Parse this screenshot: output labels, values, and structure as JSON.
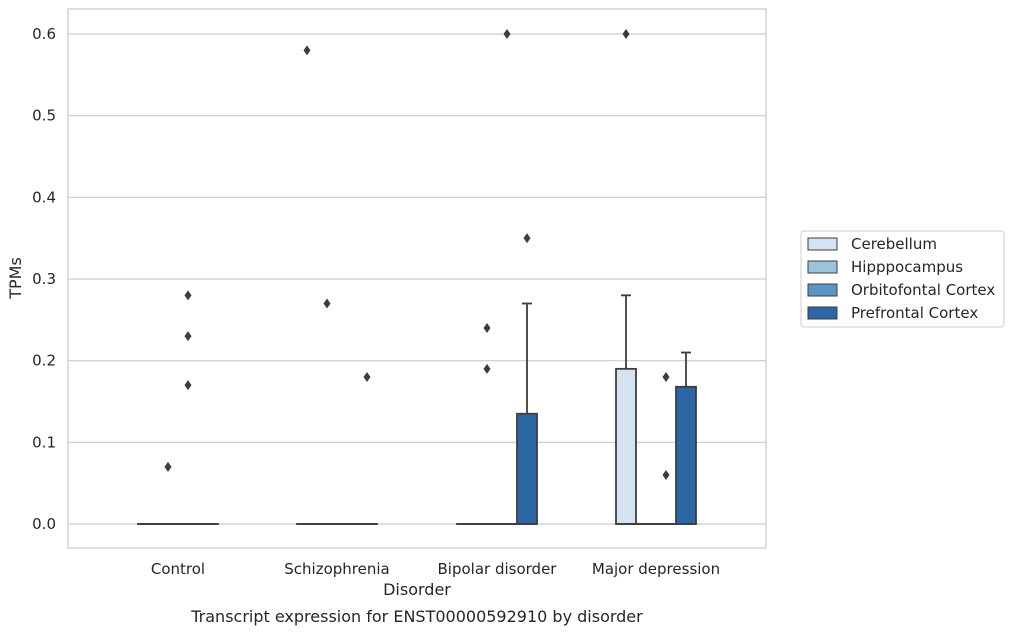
{
  "chart_data": {
    "type": "box",
    "caption": "Transcript expression for ENST00000592910 by disorder",
    "xlabel": "Disorder",
    "ylabel": "TPMs",
    "ylim": [
      -0.03,
      0.63
    ],
    "yticks": [
      0.0,
      0.1,
      0.2,
      0.3,
      0.4,
      0.5,
      0.6
    ],
    "ytick_labels": [
      "0.0",
      "0.1",
      "0.2",
      "0.3",
      "0.4",
      "0.5",
      "0.6"
    ],
    "grid": "horizontal",
    "legend_placement": "right",
    "categories": [
      "Control",
      "Schizophrenia",
      "Bipolar disorder",
      "Major depression"
    ],
    "series": [
      {
        "name": "Cerebellum",
        "color": "#d4e3f1",
        "boxes": [
          {
            "q1": 0,
            "median": 0,
            "q3": 0,
            "whisker_low": 0,
            "whisker_high": 0,
            "outliers": []
          },
          {
            "q1": 0,
            "median": 0,
            "q3": 0,
            "whisker_low": 0,
            "whisker_high": 0,
            "outliers": [
              0.58
            ]
          },
          {
            "q1": 0,
            "median": 0,
            "q3": 0,
            "whisker_low": 0,
            "whisker_high": 0,
            "outliers": []
          },
          {
            "q1": 0,
            "median": 0,
            "q3": 0.19,
            "whisker_low": 0,
            "whisker_high": 0.28,
            "outliers": [
              0.6
            ]
          }
        ]
      },
      {
        "name": "Hipppocampus",
        "color": "#9ac3dd",
        "boxes": [
          {
            "q1": 0,
            "median": 0,
            "q3": 0,
            "whisker_low": 0,
            "whisker_high": 0,
            "outliers": [
              0.07
            ]
          },
          {
            "q1": 0,
            "median": 0,
            "q3": 0,
            "whisker_low": 0,
            "whisker_high": 0,
            "outliers": [
              0.27
            ]
          },
          {
            "q1": 0,
            "median": 0,
            "q3": 0,
            "whisker_low": 0,
            "whisker_high": 0,
            "outliers": [
              0.24,
              0.19
            ]
          },
          {
            "q1": 0,
            "median": 0,
            "q3": 0,
            "whisker_low": 0,
            "whisker_high": 0,
            "outliers": []
          }
        ]
      },
      {
        "name": "Orbitofontal Cortex",
        "color": "#5a96c3",
        "boxes": [
          {
            "q1": 0,
            "median": 0,
            "q3": 0,
            "whisker_low": 0,
            "whisker_high": 0,
            "outliers": [
              0.28,
              0.23,
              0.17
            ]
          },
          {
            "q1": 0,
            "median": 0,
            "q3": 0,
            "whisker_low": 0,
            "whisker_high": 0,
            "outliers": []
          },
          {
            "q1": 0,
            "median": 0,
            "q3": 0,
            "whisker_low": 0,
            "whisker_high": 0,
            "outliers": [
              0.6
            ]
          },
          {
            "q1": 0,
            "median": 0,
            "q3": 0,
            "whisker_low": 0,
            "whisker_high": 0,
            "outliers": [
              0.18,
              0.06
            ]
          }
        ]
      },
      {
        "name": "Prefrontal Cortex",
        "color": "#2b67a4",
        "boxes": [
          {
            "q1": 0,
            "median": 0,
            "q3": 0,
            "whisker_low": 0,
            "whisker_high": 0,
            "outliers": []
          },
          {
            "q1": 0,
            "median": 0,
            "q3": 0,
            "whisker_low": 0,
            "whisker_high": 0,
            "outliers": [
              0.18
            ]
          },
          {
            "q1": 0,
            "median": 0,
            "q3": 0.135,
            "whisker_low": 0,
            "whisker_high": 0.27,
            "outliers": [
              0.35
            ]
          },
          {
            "q1": 0,
            "median": 0,
            "q3": 0.168,
            "whisker_low": 0,
            "whisker_high": 0.21,
            "outliers": []
          }
        ]
      }
    ]
  }
}
